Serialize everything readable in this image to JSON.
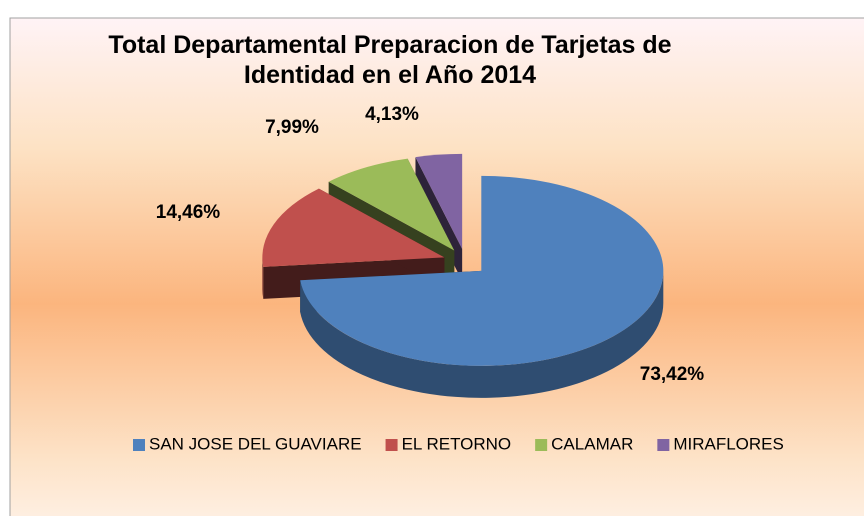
{
  "chart_data": {
    "type": "pie",
    "title": "Total Departamental Preparacion de Tarjetas de Identidad en el Año 2014",
    "categories": [
      "SAN JOSE DEL GUAVIARE",
      "EL RETORNO",
      "CALAMAR",
      "MIRAFLORES"
    ],
    "values": [
      73.42,
      14.46,
      7.99,
      4.13
    ],
    "value_labels": [
      "73,42%",
      "14,46%",
      "7,99%",
      "4,13%"
    ],
    "colors": [
      "#4f81bd",
      "#c0504d",
      "#9bbb59",
      "#8064a2"
    ],
    "legend": "bottom"
  }
}
